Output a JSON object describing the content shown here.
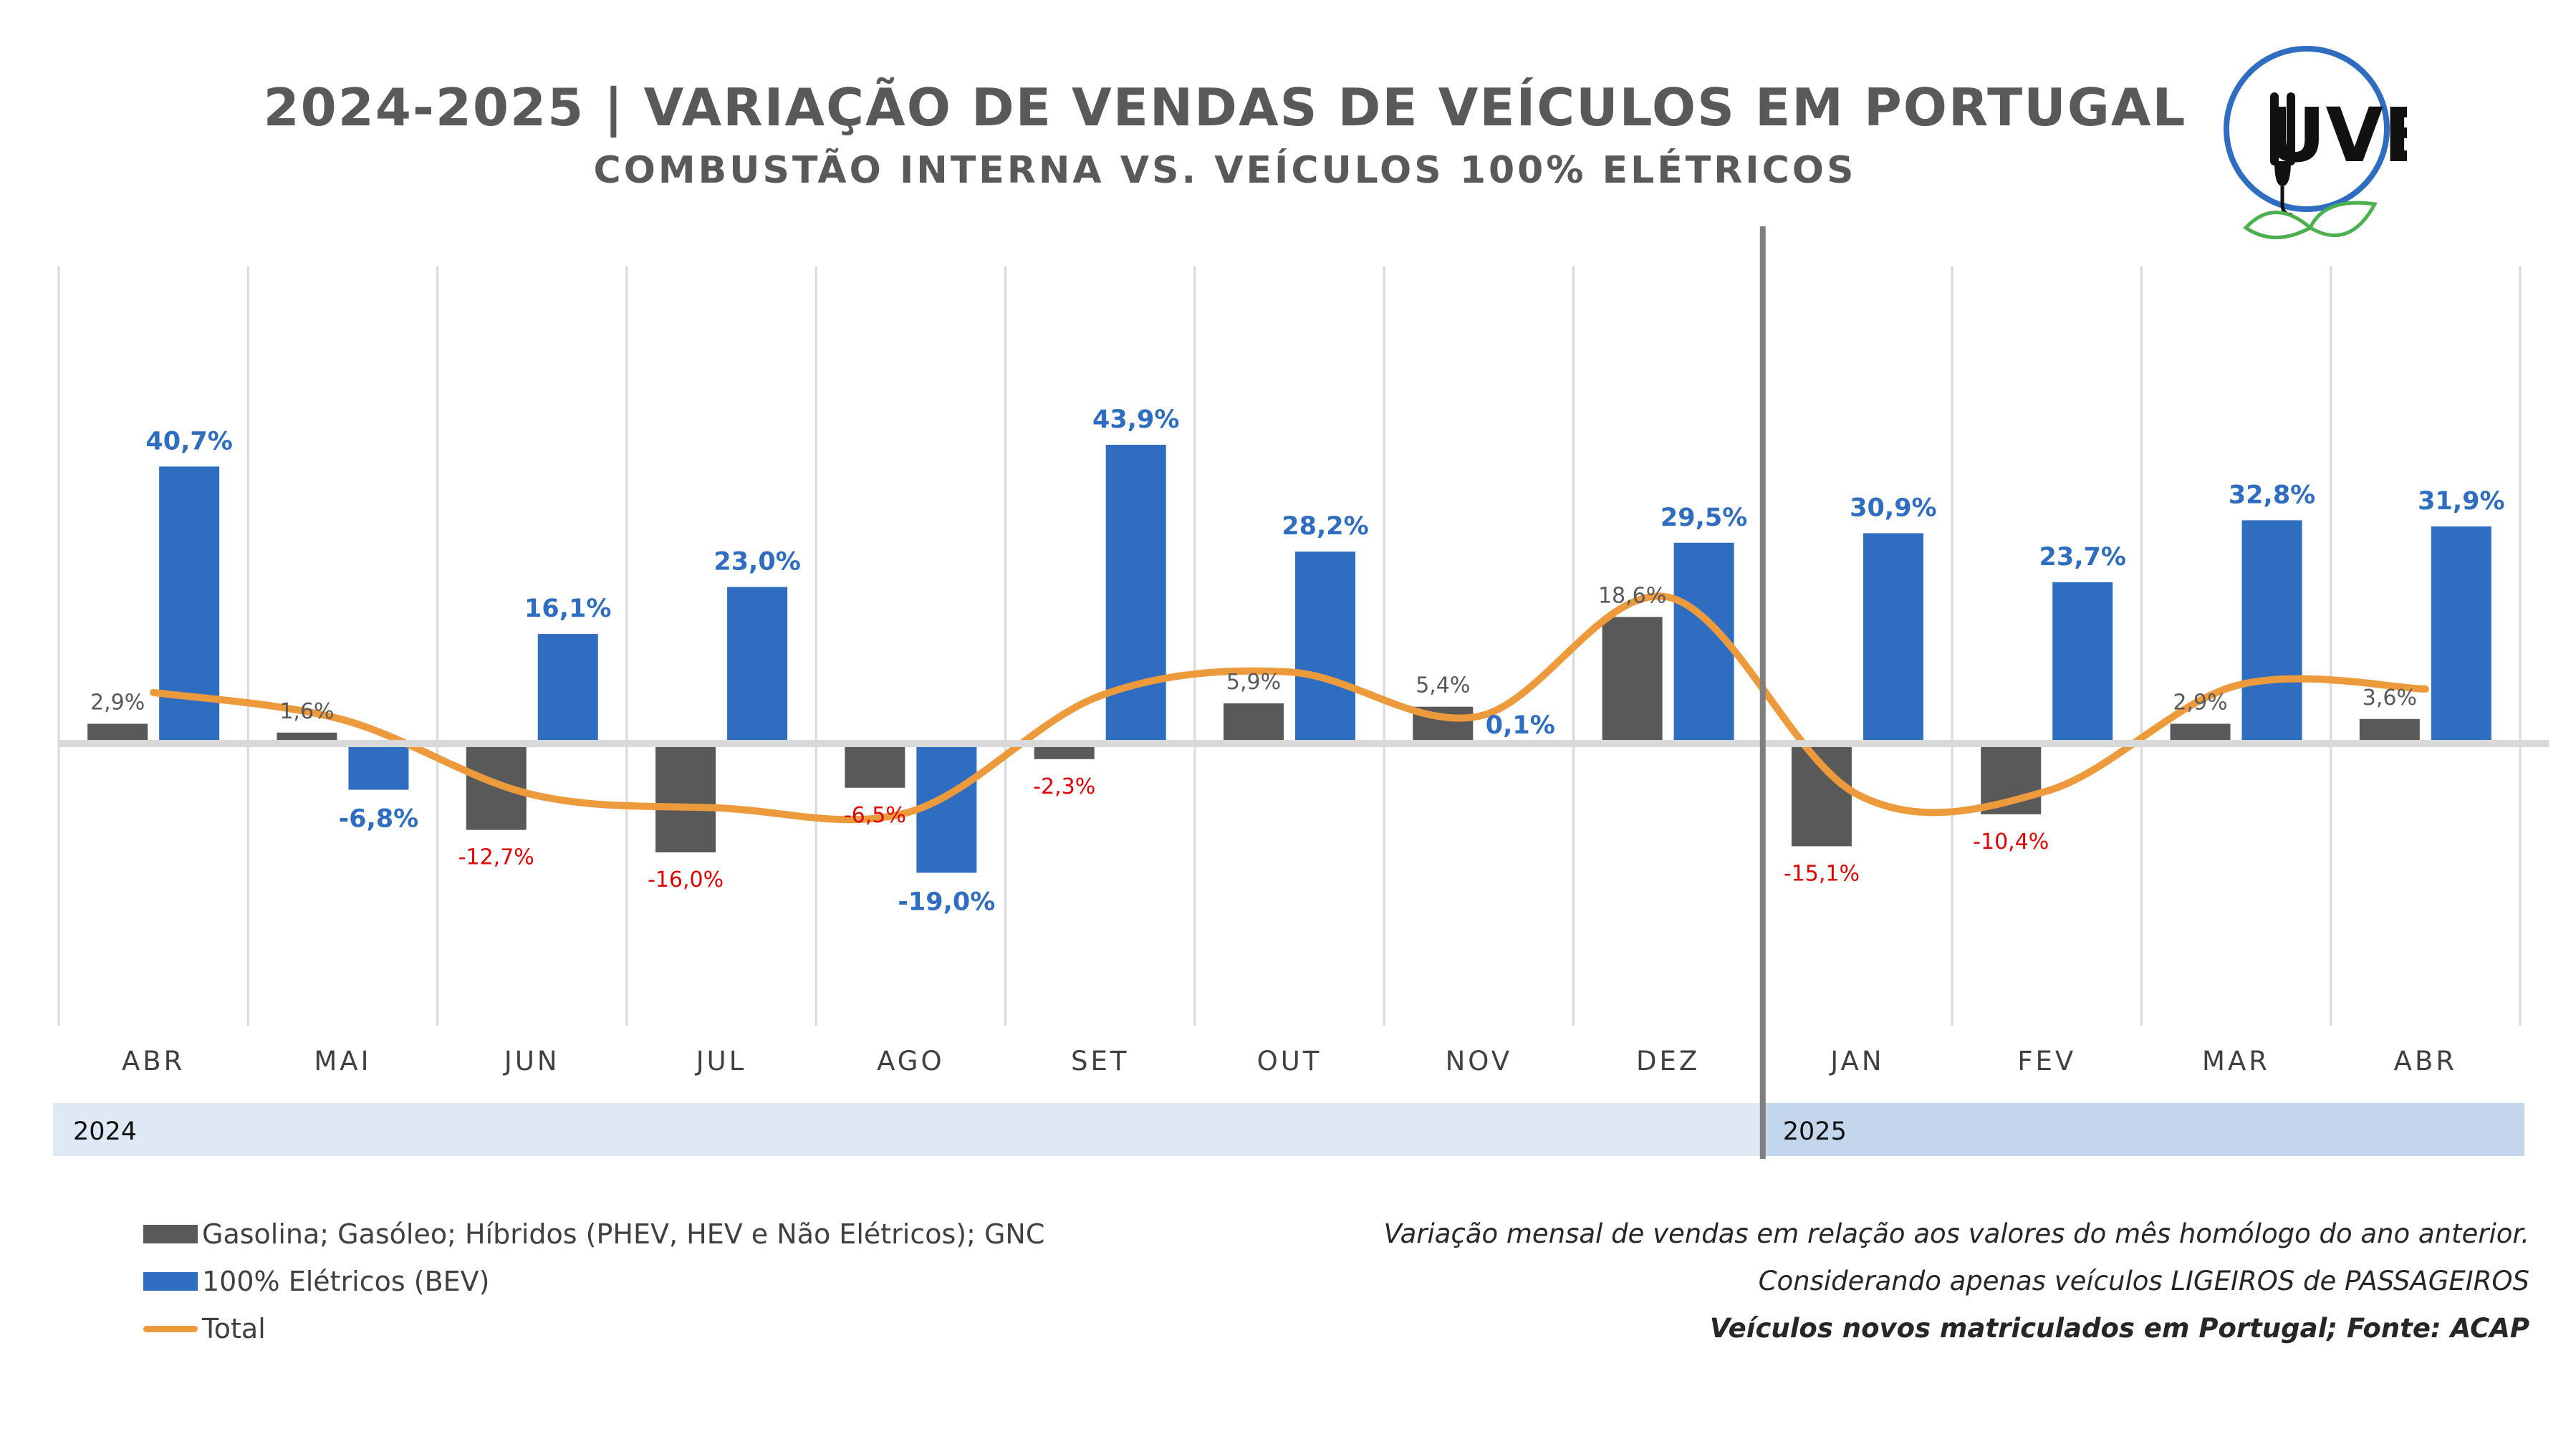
{
  "header": {
    "title": "2024-2025 | VARIAÇÃO DE VENDAS DE VEÍCULOS EM PORTUGAL",
    "subtitle": "COMBUSTÃO INTERNA VS. VEÍCULOS 100% ELÉTRICOS"
  },
  "logo": {
    "text": "UVE",
    "icon": "plug-leaf-logo"
  },
  "chart_data": {
    "type": "bar",
    "categories": [
      "ABR",
      "MAI",
      "JUN",
      "JUL",
      "AGO",
      "SET",
      "OUT",
      "NOV",
      "DEZ",
      "JAN",
      "FEV",
      "MAR",
      "ABR"
    ],
    "year_groups": [
      {
        "label": "2024",
        "start": 0,
        "end": 8
      },
      {
        "label": "2025",
        "start": 9,
        "end": 12
      }
    ],
    "series": [
      {
        "name": "Gasolina; Gasóleo; Híbridos (PHEV, HEV e Não Elétricos); GNC",
        "type": "bar",
        "color": "#595959",
        "values": [
          2.9,
          1.6,
          -12.7,
          -16.0,
          -6.5,
          -2.3,
          5.9,
          5.4,
          18.6,
          -15.1,
          -10.4,
          2.9,
          3.6
        ],
        "labels": [
          "2,9%",
          "1,6%",
          "-12,7%",
          "-16,0%",
          "-6,5%",
          "-2,3%",
          "5,9%",
          "5,4%",
          "18,6%",
          "-15,1%",
          "-10,4%",
          "2,9%",
          "3,6%"
        ]
      },
      {
        "name": "100% Elétricos (BEV)",
        "type": "bar",
        "color": "#2e6dbf",
        "values": [
          40.7,
          -6.8,
          16.1,
          23.0,
          -19.0,
          43.9,
          28.2,
          0.1,
          29.5,
          30.9,
          23.7,
          32.8,
          31.9
        ],
        "labels": [
          "40,7%",
          "-6,8%",
          "16,1%",
          "23,0%",
          "-19,0%",
          "43,9%",
          "28,2%",
          "0,1%",
          "29,5%",
          "30,9%",
          "23,7%",
          "32,8%",
          "31,9%"
        ]
      },
      {
        "name": "Total",
        "type": "line",
        "color": "#ed9a3c",
        "values": [
          7.5,
          3.5,
          -7.5,
          -9.5,
          -10.0,
          7.0,
          10.5,
          4.0,
          21.5,
          -7.5,
          -7.0,
          8.5,
          8.0
        ]
      }
    ],
    "ylim": [
      -30,
      50
    ],
    "grid": "vertical",
    "colors": {
      "negative_label": "#e00000",
      "positive_gray_label": "#595959",
      "bev_label": "#2e6dbf"
    }
  },
  "legend": [
    {
      "label": "Gasolina; Gasóleo; Híbridos (PHEV, HEV e Não Elétricos); GNC",
      "swatch": "gray"
    },
    {
      "label": "100% Elétricos (BEV)",
      "swatch": "blue"
    },
    {
      "label": "Total",
      "swatch": "line"
    }
  ],
  "notes": {
    "line1": "Variação mensal de vendas em relação aos valores do mês homólogo do ano anterior.",
    "line2": "Considerando apenas veículos LIGEIROS de PASSAGEIROS",
    "line3": "Veículos novos matriculados em Portugal; Fonte: ACAP"
  }
}
